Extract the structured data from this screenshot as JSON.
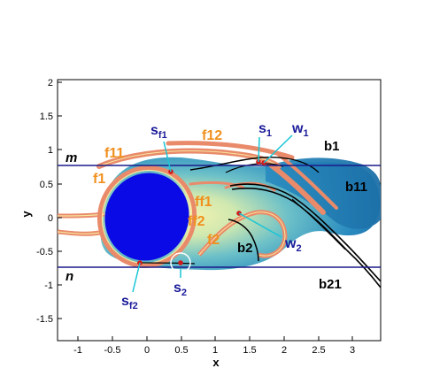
{
  "axes": {
    "xlabel": "x",
    "ylabel": "y",
    "xticks": [
      "-1",
      "-0.5",
      "0",
      "0.5",
      "1",
      "1.5",
      "2",
      "2.5",
      "3"
    ],
    "yticks": [
      "2",
      "1.5",
      "1",
      "0.5",
      "0",
      "-0.5",
      "-1",
      "-1.5"
    ],
    "xlim": [
      -1.35,
      3.45
    ],
    "ylim": [
      -1.85,
      2.05
    ]
  },
  "lines": {
    "m": {
      "label": "m",
      "y": 0.75
    },
    "n": {
      "label": "n",
      "y": -0.73
    }
  },
  "labels": {
    "f11": "f11",
    "f12": "f12",
    "f1": "f1",
    "ff1": "ff1",
    "ff2": "ff2",
    "f2": "f2",
    "b1": "b1",
    "b11": "b11",
    "b2": "b2",
    "b21": "b21",
    "s1_main": "s",
    "s1_sub": "1",
    "w1_main": "w",
    "w1_sub": "1",
    "w2_main": "w",
    "w2_sub": "2",
    "sf1_main": "s",
    "sf1_sub": "f1",
    "sf2_main": "s",
    "sf2_sub": "f2",
    "s2_main": "s",
    "s2_sub": "2"
  },
  "colors": {
    "cylinder": "#0a0ae6",
    "wake_dark": "#1f7cb0",
    "wake_light": "#e8f0a0",
    "shear_layer": "#e98a6a",
    "streakline": "#000000",
    "horizontal_line": "#1a1a8a",
    "critical_point": "#d11a1a",
    "callout": "#19c6d6",
    "label_orange": "#f0901e",
    "label_navy": "#1a1a9a"
  }
}
